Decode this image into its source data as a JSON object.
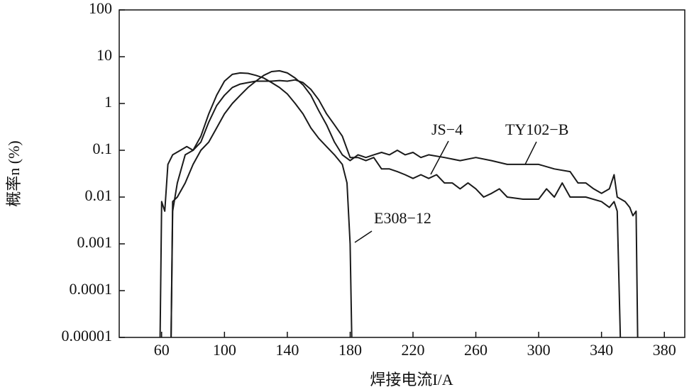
{
  "chart_data": {
    "type": "line",
    "xlabel": "焊接电流I/A",
    "ylabel": "概率n (%)",
    "xlim": [
      33,
      393
    ],
    "ylim": [
      1e-05,
      100
    ],
    "yscale": "log",
    "xticks": [
      60,
      100,
      140,
      180,
      220,
      260,
      300,
      340,
      380
    ],
    "yticks": [
      1e-05,
      0.0001,
      0.001,
      0.01,
      0.1,
      1,
      10,
      100
    ],
    "grid": false,
    "series": [
      {
        "name": "E308−12",
        "color": "#1a1a1a",
        "x": [
          59,
          60,
          62,
          64,
          67,
          72,
          76,
          80,
          85,
          90,
          95,
          100,
          105,
          110,
          115,
          120,
          125,
          130,
          135,
          140,
          145,
          150,
          155,
          160,
          165,
          170,
          175,
          178,
          180,
          181
        ],
        "values": [
          1e-05,
          0.008,
          0.005,
          0.05,
          0.08,
          0.1,
          0.12,
          0.1,
          0.2,
          0.6,
          1.5,
          3,
          4.2,
          4.5,
          4.4,
          4.0,
          3.5,
          2.8,
          2.2,
          1.6,
          1.0,
          0.6,
          0.3,
          0.18,
          0.12,
          0.08,
          0.05,
          0.02,
          0.001,
          1e-05
        ]
      },
      {
        "name": "JS−4",
        "color": "#1a1a1a",
        "x": [
          66,
          67,
          70,
          75,
          80,
          85,
          90,
          95,
          100,
          105,
          110,
          115,
          120,
          125,
          130,
          135,
          140,
          145,
          150,
          155,
          160,
          165,
          170,
          175,
          180,
          185,
          190,
          195,
          200,
          205,
          210,
          215,
          220,
          225,
          230,
          235,
          240,
          245,
          250,
          255,
          260,
          265,
          270,
          275,
          280,
          290,
          300,
          305,
          310,
          315,
          320,
          330,
          340,
          345,
          348,
          350,
          352
        ],
        "values": [
          1e-05,
          0.005,
          0.02,
          0.08,
          0.1,
          0.15,
          0.4,
          0.9,
          1.5,
          2.2,
          2.6,
          2.8,
          3,
          3,
          3,
          3.1,
          3,
          3.2,
          2.8,
          2.0,
          1.2,
          0.6,
          0.35,
          0.2,
          0.07,
          0.07,
          0.06,
          0.07,
          0.04,
          0.04,
          0.035,
          0.03,
          0.025,
          0.03,
          0.025,
          0.03,
          0.02,
          0.02,
          0.015,
          0.02,
          0.015,
          0.01,
          0.012,
          0.015,
          0.01,
          0.009,
          0.009,
          0.015,
          0.01,
          0.02,
          0.01,
          0.01,
          0.008,
          0.006,
          0.008,
          0.005,
          1e-05
        ]
      },
      {
        "name": "TY102−B",
        "color": "#1a1a1a",
        "x": [
          66,
          67,
          70,
          75,
          80,
          85,
          90,
          95,
          100,
          105,
          110,
          115,
          120,
          125,
          130,
          135,
          140,
          145,
          150,
          155,
          160,
          165,
          170,
          175,
          180,
          185,
          190,
          195,
          200,
          205,
          210,
          215,
          220,
          225,
          230,
          240,
          250,
          260,
          270,
          280,
          290,
          300,
          310,
          320,
          325,
          330,
          335,
          340,
          345,
          348,
          350,
          355,
          358,
          360,
          362,
          363
        ],
        "values": [
          1e-05,
          0.008,
          0.01,
          0.02,
          0.05,
          0.1,
          0.15,
          0.3,
          0.6,
          1.0,
          1.5,
          2.2,
          3,
          4,
          4.8,
          5,
          4.5,
          3.5,
          2.5,
          1.5,
          0.7,
          0.35,
          0.15,
          0.08,
          0.06,
          0.08,
          0.07,
          0.08,
          0.09,
          0.08,
          0.1,
          0.08,
          0.09,
          0.07,
          0.08,
          0.07,
          0.06,
          0.07,
          0.06,
          0.05,
          0.05,
          0.05,
          0.04,
          0.035,
          0.02,
          0.02,
          0.015,
          0.012,
          0.015,
          0.03,
          0.01,
          0.008,
          0.006,
          0.004,
          0.005,
          1e-05
        ]
      }
    ]
  }
}
